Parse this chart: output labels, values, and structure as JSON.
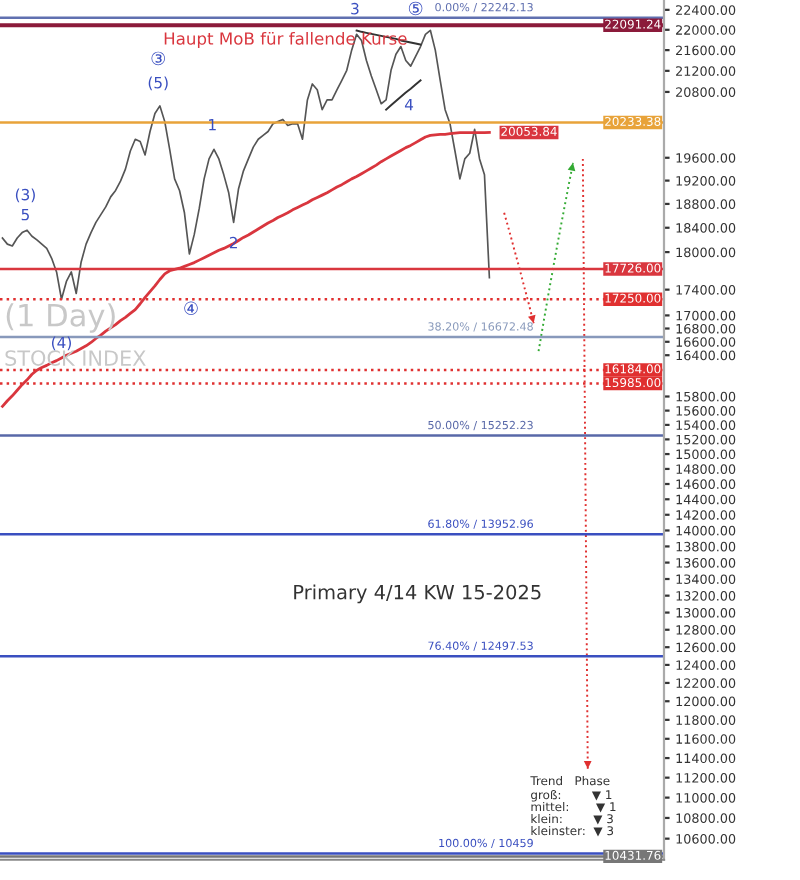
{
  "chart_data": {
    "type": "line",
    "categories": [
      null,
      null,
      null,
      null,
      null,
      null,
      null,
      null,
      null,
      null,
      null,
      null,
      null,
      null,
      null,
      null,
      null,
      null,
      null,
      null,
      null,
      null,
      null,
      null,
      null,
      null,
      null,
      null,
      null,
      null,
      null,
      null,
      null,
      null,
      null,
      null,
      null,
      null,
      null,
      null,
      null,
      null,
      null,
      null,
      null,
      null,
      null,
      null,
      null,
      null,
      null,
      null,
      null,
      null,
      null,
      null,
      null,
      null,
      null,
      null,
      null,
      null,
      null,
      null,
      null,
      null,
      null,
      null,
      null,
      null,
      null,
      null,
      null,
      null,
      null,
      null,
      null,
      null,
      null,
      null,
      null,
      null,
      null,
      null,
      null,
      null,
      null,
      null,
      null,
      null,
      null,
      null,
      null,
      null,
      null,
      null,
      null,
      null,
      null,
      null,
      null,
      null,
      null,
      null,
      null,
      null,
      null,
      null,
      null,
      null,
      null,
      null,
      null,
      null,
      null,
      null,
      null,
      null,
      null,
      null,
      null,
      null,
      null,
      null,
      null
    ],
    "ylim": [
      10400,
      22600
    ],
    "log": "y",
    "tick_labels": "y",
    "grid": false,
    "marker": "none",
    "yticks": [
      {
        "value": 10600,
        "label": "10600.00"
      },
      {
        "value": 10800,
        "label": "10800.00"
      },
      {
        "value": 11000,
        "label": "11000.00"
      },
      {
        "value": 11200,
        "label": "11200.00"
      },
      {
        "value": 11400,
        "label": "11400.00"
      },
      {
        "value": 11600,
        "label": "11600.00"
      },
      {
        "value": 11800,
        "label": "11800.00"
      },
      {
        "value": 12000,
        "label": "12000.00"
      },
      {
        "value": 12200,
        "label": "12200.00"
      },
      {
        "value": 12400,
        "label": "12400.00"
      },
      {
        "value": 12600,
        "label": "12600.00"
      },
      {
        "value": 12800,
        "label": "12800.00"
      },
      {
        "value": 13000,
        "label": "13000.00"
      },
      {
        "value": 13200,
        "label": "13200.00"
      },
      {
        "value": 13400,
        "label": "13400.00"
      },
      {
        "value": 13600,
        "label": "13600.00"
      },
      {
        "value": 13800,
        "label": "13800.00"
      },
      {
        "value": 14000,
        "label": "14000.00"
      },
      {
        "value": 14200,
        "label": "14200.00"
      },
      {
        "value": 14400,
        "label": "14400.00"
      },
      {
        "value": 14600,
        "label": "14600.00"
      },
      {
        "value": 14800,
        "label": "14800.00"
      },
      {
        "value": 15000,
        "label": "15000.00"
      },
      {
        "value": 15200,
        "label": "15200.00"
      },
      {
        "value": 15400,
        "label": "15400.00"
      },
      {
        "value": 15600,
        "label": "15600.00"
      },
      {
        "value": 15800,
        "label": "15800.00"
      },
      {
        "value": 16400,
        "label": "16400.00"
      },
      {
        "value": 16600,
        "label": "16600.00"
      },
      {
        "value": 16800,
        "label": "16800.00"
      },
      {
        "value": 17000,
        "label": "17000.00"
      },
      {
        "value": 17400,
        "label": "17400.00"
      },
      {
        "value": 18000,
        "label": "18000.00"
      },
      {
        "value": 18400,
        "label": "18400.00"
      },
      {
        "value": 18800,
        "label": "18800.00"
      },
      {
        "value": 19200,
        "label": "19200.00"
      },
      {
        "value": 19600,
        "label": "19600.00"
      },
      {
        "value": 20800,
        "label": "20800.00"
      },
      {
        "value": 21200,
        "label": "21200.00"
      },
      {
        "value": 21600,
        "label": "21600.00"
      },
      {
        "value": 22000,
        "label": "22000.00"
      },
      {
        "value": 22400,
        "label": "22400.00"
      }
    ],
    "series": [
      {
        "color": "#555555",
        "values": [
          18230,
          18130,
          18100,
          18230,
          18320,
          18360,
          18260,
          18200,
          18130,
          18060,
          17900,
          17680,
          17250,
          17530,
          17680,
          17340,
          17840,
          18130,
          18320,
          18490,
          18620,
          18750,
          18920,
          19030,
          19190,
          19400,
          19720,
          19930,
          19890,
          19650,
          20070,
          20400,
          20540,
          20250,
          19750,
          19230,
          19030,
          18650,
          17970,
          18290,
          18720,
          19230,
          19580,
          19750,
          19580,
          19300,
          18990,
          18490,
          19060,
          19370,
          19580,
          19790,
          19930,
          20000,
          20070,
          20210,
          20250,
          20290,
          20180,
          20210,
          20210,
          19930,
          20650,
          20950,
          20840,
          20470,
          20650,
          20650,
          20840,
          21020,
          21210,
          21600,
          21910,
          21790,
          21400,
          21100,
          20840,
          20580,
          20650,
          21210,
          21520,
          21670,
          21400,
          21290,
          21480,
          21670,
          21910,
          21990,
          21600,
          21020,
          20470,
          20210,
          19720,
          19230,
          19580,
          19680,
          20110,
          19580,
          19300,
          17590,
          null,
          null,
          null,
          null,
          null,
          null,
          null,
          null,
          null,
          null,
          null,
          null,
          null,
          null,
          null,
          null,
          null,
          null,
          null,
          null,
          null,
          null,
          null,
          null,
          null
        ]
      },
      {
        "color": "#d9363e",
        "values": [
          15660,
          15740,
          15810,
          15890,
          15970,
          16040,
          16120,
          16180,
          16220,
          16250,
          16290,
          16320,
          16360,
          16400,
          16430,
          16460,
          16500,
          16540,
          16590,
          16650,
          16700,
          16760,
          16810,
          16860,
          16920,
          16970,
          17030,
          17090,
          17180,
          17280,
          17370,
          17460,
          17560,
          17650,
          17700,
          17720,
          17740,
          17770,
          17800,
          17830,
          17870,
          17910,
          17950,
          17990,
          18030,
          18060,
          18100,
          18140,
          18190,
          18240,
          18280,
          18330,
          18380,
          18430,
          18480,
          18520,
          18570,
          18610,
          18650,
          18700,
          18740,
          18780,
          18820,
          18870,
          18910,
          18950,
          18990,
          19040,
          19090,
          19130,
          19180,
          19230,
          19270,
          19320,
          19370,
          19420,
          19470,
          19530,
          19580,
          19630,
          19680,
          19730,
          19780,
          19820,
          19870,
          19920,
          19970,
          20000,
          20010,
          20020,
          20020,
          20030,
          20040,
          20050,
          20050,
          20050,
          20050,
          20050,
          20050,
          20053.84,
          null,
          null,
          null,
          null,
          null,
          null,
          null,
          null,
          null,
          null,
          null,
          null,
          null,
          null,
          null,
          null,
          null,
          null,
          null,
          null,
          null,
          null,
          null,
          null,
          null
        ],
        "value_labels": [
          null,
          null,
          null,
          null,
          null,
          null,
          null,
          null,
          null,
          null,
          null,
          null,
          null,
          null,
          null,
          null,
          null,
          null,
          null,
          null,
          null,
          null,
          null,
          null,
          null,
          null,
          null,
          null,
          null,
          null,
          null,
          null,
          null,
          null,
          null,
          null,
          null,
          null,
          null,
          null,
          null,
          null,
          null,
          null,
          null,
          null,
          null,
          null,
          null,
          null,
          null,
          null,
          null,
          null,
          null,
          null,
          null,
          null,
          null,
          null,
          null,
          null,
          null,
          null,
          null,
          null,
          null,
          null,
          null,
          null,
          null,
          null,
          null,
          null,
          null,
          null,
          null,
          null,
          null,
          null,
          null,
          null,
          null,
          null,
          null,
          null,
          null,
          null,
          null,
          null,
          null,
          null,
          null,
          null,
          null,
          null,
          null,
          null,
          null,
          "20053.84",
          null,
          null,
          null,
          null,
          null,
          null,
          null,
          null,
          null,
          null,
          null,
          null,
          null,
          null,
          null,
          null,
          null,
          null,
          null,
          null,
          null,
          null,
          null,
          null,
          null
        ]
      },
      {
        "color": "#333333",
        "values": [
          null,
          null,
          null,
          null,
          null,
          null,
          null,
          null,
          null,
          null,
          null,
          null,
          null,
          null,
          null,
          null,
          null,
          null,
          null,
          null,
          null,
          null,
          null,
          null,
          null,
          null,
          null,
          null,
          null,
          null,
          null,
          null,
          null,
          null,
          null,
          null,
          null,
          null,
          null,
          null,
          null,
          null,
          null,
          null,
          null,
          null,
          null,
          null,
          null,
          null,
          null,
          null,
          null,
          null,
          null,
          null,
          null,
          null,
          null,
          null,
          null,
          null,
          null,
          null,
          null,
          null,
          null,
          null,
          null,
          null,
          null,
          null,
          21985,
          21960,
          21940,
          21920,
          21900,
          21880,
          21860,
          21840,
          21820,
          21790,
          21770,
          21750,
          21730,
          21710,
          null,
          null,
          null,
          null,
          null,
          null,
          null,
          null,
          null,
          null,
          null,
          null,
          null,
          null,
          null,
          null,
          null,
          null,
          null,
          null,
          null,
          null,
          null,
          null,
          null,
          null,
          null,
          null,
          null,
          null,
          null,
          null,
          null,
          null,
          null,
          null,
          null,
          null,
          null
        ]
      },
      {
        "color": "#333333",
        "values": [
          null,
          null,
          null,
          null,
          null,
          null,
          null,
          null,
          null,
          null,
          null,
          null,
          null,
          null,
          null,
          null,
          null,
          null,
          null,
          null,
          null,
          null,
          null,
          null,
          null,
          null,
          null,
          null,
          null,
          null,
          null,
          null,
          null,
          null,
          null,
          null,
          null,
          null,
          null,
          null,
          null,
          null,
          null,
          null,
          null,
          null,
          null,
          null,
          null,
          null,
          null,
          null,
          null,
          null,
          null,
          null,
          null,
          null,
          null,
          null,
          null,
          null,
          null,
          null,
          null,
          null,
          null,
          null,
          null,
          null,
          null,
          null,
          null,
          null,
          null,
          null,
          null,
          null,
          20470,
          20550,
          20630,
          20710,
          20790,
          20860,
          20940,
          21020,
          null,
          null,
          null,
          null,
          null,
          null,
          null,
          null,
          null,
          null,
          null,
          null,
          null,
          null,
          null,
          null,
          null,
          null,
          null,
          null,
          null,
          null,
          null,
          null,
          null,
          null,
          null,
          null,
          null,
          null,
          null,
          null,
          null,
          null,
          null,
          null,
          null,
          null,
          null
        ]
      },
      {
        "color": "#e03030",
        "line_style": "dotted",
        "values": [
          null,
          null,
          null,
          null,
          null,
          null,
          null,
          null,
          null,
          null,
          null,
          null,
          null,
          null,
          null,
          null,
          null,
          null,
          null,
          null,
          null,
          null,
          null,
          null,
          null,
          null,
          null,
          null,
          null,
          null,
          null,
          null,
          null,
          null,
          null,
          null,
          null,
          null,
          null,
          null,
          null,
          null,
          null,
          null,
          null,
          null,
          null,
          null,
          null,
          null,
          null,
          null,
          null,
          null,
          null,
          null,
          null,
          null,
          null,
          null,
          null,
          null,
          null,
          null,
          null,
          null,
          null,
          null,
          null,
          null,
          null,
          null,
          null,
          null,
          null,
          null,
          null,
          null,
          null,
          null,
          null,
          null,
          null,
          null,
          null,
          null,
          null,
          null,
          null,
          null,
          null,
          null,
          null,
          null,
          null,
          null,
          null,
          null,
          null,
          null,
          null,
          null,
          18650,
          18360,
          18060,
          17770,
          17470,
          17180,
          16880,
          null,
          null,
          null,
          null,
          null,
          null,
          null,
          null,
          null,
          null,
          null,
          null,
          null,
          null,
          null,
          null
        ]
      },
      {
        "color": "#33aa33",
        "line_style": "dotted",
        "values": [
          null,
          null,
          null,
          null,
          null,
          null,
          null,
          null,
          null,
          null,
          null,
          null,
          null,
          null,
          null,
          null,
          null,
          null,
          null,
          null,
          null,
          null,
          null,
          null,
          null,
          null,
          null,
          null,
          null,
          null,
          null,
          null,
          null,
          null,
          null,
          null,
          null,
          null,
          null,
          null,
          null,
          null,
          null,
          null,
          null,
          null,
          null,
          null,
          null,
          null,
          null,
          null,
          null,
          null,
          null,
          null,
          null,
          null,
          null,
          null,
          null,
          null,
          null,
          null,
          null,
          null,
          null,
          null,
          null,
          null,
          null,
          null,
          null,
          null,
          null,
          null,
          null,
          null,
          null,
          null,
          null,
          null,
          null,
          null,
          null,
          null,
          null,
          null,
          null,
          null,
          null,
          null,
          null,
          null,
          null,
          null,
          null,
          null,
          null,
          null,
          null,
          null,
          null,
          null,
          null,
          null,
          null,
          null,
          null,
          16460,
          16890,
          17330,
          17760,
          18200,
          18630,
          19070,
          19510,
          null,
          null,
          null,
          null,
          null,
          null,
          null,
          null
        ]
      },
      {
        "color": "#e03030",
        "line_style": "dotted",
        "values": [
          null,
          null,
          null,
          null,
          null,
          null,
          null,
          null,
          null,
          null,
          null,
          null,
          null,
          null,
          null,
          null,
          null,
          null,
          null,
          null,
          null,
          null,
          null,
          null,
          null,
          null,
          null,
          null,
          null,
          null,
          null,
          null,
          null,
          null,
          null,
          null,
          null,
          null,
          null,
          null,
          null,
          null,
          null,
          null,
          null,
          null,
          null,
          null,
          null,
          null,
          null,
          null,
          null,
          null,
          null,
          null,
          null,
          null,
          null,
          null,
          null,
          null,
          null,
          null,
          null,
          null,
          null,
          null,
          null,
          null,
          null,
          null,
          null,
          null,
          null,
          null,
          null,
          null,
          null,
          null,
          null,
          null,
          null,
          null,
          null,
          null,
          null,
          null,
          null,
          null,
          null,
          null,
          null,
          null,
          null,
          null,
          null,
          null,
          null,
          null,
          null,
          null,
          null,
          null,
          null,
          null,
          null,
          null,
          null,
          null,
          null,
          null,
          null,
          null,
          null,
          null,
          null,
          null,
          19580,
          11290,
          null,
          null,
          null,
          null,
          null
        ]
      }
    ],
    "ref_lines": [
      {
        "axis": "y",
        "value": 22091.24,
        "label": "22091.24",
        "color": "#8b1a3a"
      },
      {
        "axis": "y",
        "value": 20233.38,
        "label": "20233.38",
        "color": "#e8a33a"
      },
      {
        "axis": "y",
        "value": 17726,
        "label": "17726.00",
        "color": "#d9363e"
      },
      {
        "axis": "y",
        "value": 17250,
        "label": "17250.00",
        "color": "#e03030",
        "line_style": "dotted"
      },
      {
        "axis": "y",
        "value": 16184,
        "label": "16184.00",
        "color": "#e03030",
        "line_style": "dotted"
      },
      {
        "axis": "y",
        "value": 15985,
        "label": "15985.00",
        "color": "#e03030",
        "line_style": "dotted"
      },
      {
        "axis": "y",
        "value": 10431.76,
        "label": "10431.76",
        "color": "#777777"
      },
      {
        "axis": "y",
        "value": 22242.13,
        "label": "0.00% / 22242.13",
        "color": "#6070b0"
      },
      {
        "axis": "y",
        "value": 16672.48,
        "label": "38.20% / 16672.48",
        "color": "#8899bb"
      },
      {
        "axis": "y",
        "value": 15252.23,
        "label": "50.00% / 15252.23",
        "color": "#5868a8"
      },
      {
        "axis": "y",
        "value": 13952.96,
        "label": "61.80% / 13952.96",
        "color": "#3a4fc0"
      },
      {
        "axis": "y",
        "value": 12497.53,
        "label": "76.40% / 12497.53",
        "color": "#3a4fc0"
      },
      {
        "axis": "y",
        "value": 10459,
        "label": "100.00% / 10459",
        "color": "#3a4fc0"
      }
    ],
    "annotations": [
      "Haupt MoB für fallende Kurse",
      "(1 Day)",
      "STOCK INDEX",
      "Primary 4/14 KW 15-2025",
      "Trend   Phase",
      "groß:        ▼ 1",
      "mittel:       ▼ 1",
      "klein:        ▼ 3",
      "kleinster:  ▼ 3",
      "(3)",
      "5",
      "③",
      "(5)",
      "(4)",
      "④",
      "1",
      "2",
      "3",
      "⑤",
      "4"
    ]
  }
}
